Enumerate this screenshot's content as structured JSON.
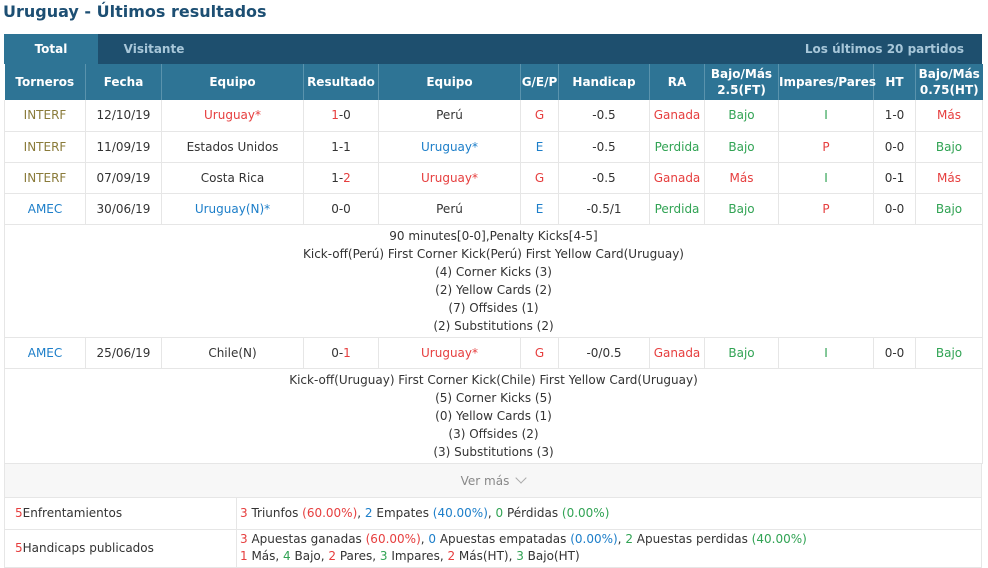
{
  "page_title": "Uruguay - Últimos resultados",
  "tabs": [
    {
      "label": "Total",
      "active": true
    },
    {
      "label": "Visitante",
      "active": false
    }
  ],
  "last_label": "Los últimos 20 partidos",
  "columns": [
    "Torneros",
    "Fecha",
    "Equipo",
    "Resultado",
    "Equipo",
    "G/E/P",
    "Handicap",
    "RA",
    "Bajo/Más 2.5(FT)",
    "Impares/Pares",
    "HT",
    "Bajo/Más 0.75(HT)"
  ],
  "matches": [
    {
      "torneo": "INTERF",
      "fecha": "12/10/19",
      "home": "Uruguay*",
      "score_home": "1",
      "score_sep": "-",
      "score_away": "0",
      "away": "Perú",
      "gep": "G",
      "handicap": "-0.5",
      "ra": "Ganada",
      "bm25": "Bajo",
      "ip": "I",
      "ht": "1-0",
      "bm075": "Más"
    },
    {
      "torneo": "INTERF",
      "fecha": "11/09/19",
      "home": "Estados Unidos",
      "score_home": "1",
      "score_sep": "-",
      "score_away": "1",
      "away": "Uruguay*",
      "gep": "E",
      "handicap": "-0.5",
      "ra": "Perdida",
      "bm25": "Bajo",
      "ip": "P",
      "ht": "0-0",
      "bm075": "Bajo"
    },
    {
      "torneo": "INTERF",
      "fecha": "07/09/19",
      "home": "Costa Rica",
      "score_home": "1",
      "score_sep": "-",
      "score_away": "2",
      "away": "Uruguay*",
      "gep": "G",
      "handicap": "-0.5",
      "ra": "Ganada",
      "bm25": "Más",
      "ip": "I",
      "ht": "0-1",
      "bm075": "Más"
    },
    {
      "torneo": "AMEC",
      "fecha": "30/06/19",
      "home": "Uruguay(N)*",
      "score_home": "0",
      "score_sep": "-",
      "score_away": "0",
      "away": "Perú",
      "gep": "E",
      "handicap": "-0.5/1",
      "ra": "Perdida",
      "bm25": "Bajo",
      "ip": "P",
      "ht": "0-0",
      "bm075": "Bajo"
    },
    {
      "torneo": "AMEC",
      "fecha": "25/06/19",
      "home": "Chile(N)",
      "score_home": "0",
      "score_sep": "-",
      "score_away": "1",
      "away": "Uruguay*",
      "gep": "G",
      "handicap": "-0/0.5",
      "ra": "Ganada",
      "bm25": "Bajo",
      "ip": "I",
      "ht": "0-0",
      "bm075": "Bajo"
    }
  ],
  "details": [
    {
      "lines": [
        "90 minutes[0-0],Penalty Kicks[4-5]",
        "Kick-off(Perú)  First Corner Kick(Perú)  First Yellow Card(Uruguay)",
        "(4) Corner Kicks (3)",
        "(2) Yellow Cards (2)",
        "(7) Offsides (1)",
        "(2) Substitutions (2)"
      ]
    },
    {
      "lines": [
        "Kick-off(Uruguay)  First Corner Kick(Chile)  First Yellow Card(Uruguay)",
        "(5) Corner Kicks (5)",
        "(0) Yellow Cards (1)",
        "(3) Offsides (2)",
        "(3) Substitutions (3)"
      ]
    }
  ],
  "ver_mas": "Ver más",
  "summary": {
    "enfrentamientos": {
      "count": "5",
      "label": " Enfrentamientos",
      "w": "3",
      "w_txt": " Triunfos ",
      "w_pct": "(60.00%)",
      "d": "2",
      "d_txt": " Empates ",
      "d_pct": "(40.00%)",
      "l": "0",
      "l_txt": " Pérdidas ",
      "l_pct": "(0.00%)"
    },
    "handicaps": {
      "count": "5",
      "label": " Handicaps publicados",
      "g": "3",
      "g_txt": " Apuestas ganadas ",
      "g_pct": "(60.00%)",
      "e": "0",
      "e_txt": " Apuestas empatadas ",
      "e_pct": "(0.00%)",
      "p": "2",
      "p_txt": " Apuestas perdidas ",
      "p_pct": "(40.00%)",
      "l2": [
        {
          "n": "1",
          "t": " Más, "
        },
        {
          "n": "4",
          "t": " Bajo, "
        },
        {
          "n": "2",
          "t": " Pares, "
        },
        {
          "n": "3",
          "t": " Impares, "
        },
        {
          "n": "2",
          "t": " Más(HT), "
        },
        {
          "n": "3",
          "t": " Bajo(HT)"
        }
      ]
    }
  }
}
